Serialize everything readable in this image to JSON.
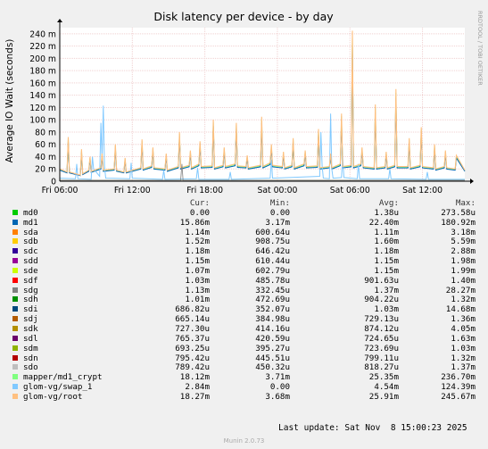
{
  "chart_data": {
    "type": "line",
    "title": "Disk latency per device - by day",
    "ylabel": "Average IO Wait (seconds)",
    "ylim": [
      0,
      250
    ],
    "yticks": [
      0,
      20,
      40,
      60,
      80,
      100,
      120,
      140,
      160,
      180,
      200,
      220,
      240
    ],
    "ytick_labels": [
      "0",
      "20 m",
      "40 m",
      "60 m",
      "80 m",
      "100 m",
      "120 m",
      "140 m",
      "160 m",
      "180 m",
      "200 m",
      "220 m",
      "240 m"
    ],
    "x_hours": [
      0,
      33.5
    ],
    "xticks": [
      {
        "label": "Fri 06:00",
        "h": 0
      },
      {
        "label": "Fri 12:00",
        "h": 6
      },
      {
        "label": "Fri 18:00",
        "h": 12
      },
      {
        "label": "Sat 00:00",
        "h": 18
      },
      {
        "label": "Sat 06:00",
        "h": 24
      },
      {
        "label": "Sat 12:00",
        "h": 30
      }
    ],
    "side_label": "RRDTOOL / TOBI OETIKER",
    "grid": true,
    "legend_headers": {
      "cur": "Cur:",
      "min": "Min:",
      "avg": "Avg:",
      "max": "Max:"
    },
    "series": [
      {
        "name": "md0",
        "color": "#00cc00",
        "cur": "0.00",
        "min": "0.00",
        "avg": "1.38u",
        "max": "273.58u"
      },
      {
        "name": "md1",
        "color": "#0066b3",
        "cur": "15.86m",
        "min": "3.17m",
        "avg": "22.40m",
        "max": "180.92m"
      },
      {
        "name": "sda",
        "color": "#ff8000",
        "cur": "1.14m",
        "min": "600.64u",
        "avg": "1.11m",
        "max": "3.18m"
      },
      {
        "name": "sdb",
        "color": "#ffcc00",
        "cur": "1.52m",
        "min": "908.75u",
        "avg": "1.60m",
        "max": "5.59m"
      },
      {
        "name": "sdc",
        "color": "#330099",
        "cur": "1.18m",
        "min": "646.42u",
        "avg": "1.18m",
        "max": "2.88m"
      },
      {
        "name": "sdd",
        "color": "#990099",
        "cur": "1.15m",
        "min": "610.44u",
        "avg": "1.15m",
        "max": "1.98m"
      },
      {
        "name": "sde",
        "color": "#ccff00",
        "cur": "1.07m",
        "min": "602.79u",
        "avg": "1.15m",
        "max": "1.99m"
      },
      {
        "name": "sdf",
        "color": "#ff0000",
        "cur": "1.03m",
        "min": "485.78u",
        "avg": "901.63u",
        "max": "1.40m"
      },
      {
        "name": "sdg",
        "color": "#808080",
        "cur": "1.13m",
        "min": "332.45u",
        "avg": "1.37m",
        "max": "28.27m"
      },
      {
        "name": "sdh",
        "color": "#008f00",
        "cur": "1.01m",
        "min": "472.69u",
        "avg": "904.22u",
        "max": "1.32m"
      },
      {
        "name": "sdi",
        "color": "#00487d",
        "cur": "686.82u",
        "min": "352.07u",
        "avg": "1.03m",
        "max": "14.68m"
      },
      {
        "name": "sdj",
        "color": "#b35a00",
        "cur": "665.14u",
        "min": "384.98u",
        "avg": "729.13u",
        "max": "1.36m"
      },
      {
        "name": "sdk",
        "color": "#b38f00",
        "cur": "727.30u",
        "min": "414.16u",
        "avg": "874.12u",
        "max": "4.05m"
      },
      {
        "name": "sdl",
        "color": "#6b006b",
        "cur": "765.37u",
        "min": "420.59u",
        "avg": "724.65u",
        "max": "1.63m"
      },
      {
        "name": "sdm",
        "color": "#8fb300",
        "cur": "693.25u",
        "min": "395.27u",
        "avg": "723.69u",
        "max": "1.03m"
      },
      {
        "name": "sdn",
        "color": "#b30000",
        "cur": "795.42u",
        "min": "445.51u",
        "avg": "799.11u",
        "max": "1.32m"
      },
      {
        "name": "sdo",
        "color": "#bebebe",
        "cur": "789.42u",
        "min": "450.32u",
        "avg": "818.27u",
        "max": "1.37m"
      },
      {
        "name": "mapper/md1_crypt",
        "color": "#80ff80",
        "cur": "18.12m",
        "min": "3.71m",
        "avg": "25.35m",
        "max": "236.70m"
      },
      {
        "name": "glom-vg/swap_1",
        "color": "#80c9ff",
        "cur": "2.84m",
        "min": "0.00",
        "avg": "4.54m",
        "max": "124.39m"
      },
      {
        "name": "glom-vg/root",
        "color": "#ffc080",
        "cur": "18.27m",
        "min": "3.68m",
        "avg": "25.91m",
        "max": "245.67m"
      }
    ],
    "trace_points": {
      "root": [
        [
          0,
          20
        ],
        [
          0.6,
          15
        ],
        [
          0.7,
          72
        ],
        [
          0.8,
          15
        ],
        [
          1.7,
          10
        ],
        [
          1.8,
          52
        ],
        [
          1.9,
          12
        ],
        [
          2.4,
          18
        ],
        [
          2.5,
          40
        ],
        [
          2.6,
          16
        ],
        [
          3.4,
          22
        ],
        [
          3.5,
          45
        ],
        [
          3.6,
          18
        ],
        [
          4.5,
          20
        ],
        [
          4.6,
          60
        ],
        [
          4.7,
          18
        ],
        [
          5.3,
          15
        ],
        [
          5.4,
          38
        ],
        [
          5.5,
          15
        ],
        [
          6.7,
          22
        ],
        [
          6.8,
          68
        ],
        [
          6.9,
          20
        ],
        [
          7.6,
          25
        ],
        [
          7.7,
          55
        ],
        [
          7.8,
          22
        ],
        [
          8.7,
          20
        ],
        [
          8.8,
          45
        ],
        [
          8.9,
          18
        ],
        [
          9.8,
          24
        ],
        [
          9.9,
          80
        ],
        [
          10,
          22
        ],
        [
          10.7,
          26
        ],
        [
          10.8,
          50
        ],
        [
          10.9,
          22
        ],
        [
          11.5,
          28
        ],
        [
          11.6,
          65
        ],
        [
          11.7,
          24
        ],
        [
          12.6,
          25
        ],
        [
          12.7,
          100
        ],
        [
          12.8,
          22
        ],
        [
          13.5,
          26
        ],
        [
          13.6,
          55
        ],
        [
          13.7,
          24
        ],
        [
          14.5,
          28
        ],
        [
          14.6,
          95
        ],
        [
          14.7,
          25
        ],
        [
          15.4,
          24
        ],
        [
          15.5,
          42
        ],
        [
          15.6,
          22
        ],
        [
          16.6,
          26
        ],
        [
          16.7,
          105
        ],
        [
          16.8,
          24
        ],
        [
          17.4,
          30
        ],
        [
          17.5,
          60
        ],
        [
          17.6,
          26
        ],
        [
          18.4,
          24
        ],
        [
          18.5,
          48
        ],
        [
          18.6,
          22
        ],
        [
          19.2,
          26
        ],
        [
          19.3,
          70
        ],
        [
          19.4,
          22
        ],
        [
          20.2,
          28
        ],
        [
          20.3,
          50
        ],
        [
          20.4,
          24
        ],
        [
          21.3,
          25
        ],
        [
          21.4,
          85
        ],
        [
          21.5,
          22
        ],
        [
          22.3,
          24
        ],
        [
          22.4,
          45
        ],
        [
          22.5,
          22
        ],
        [
          23.2,
          28
        ],
        [
          23.3,
          110
        ],
        [
          23.4,
          24
        ],
        [
          24.1,
          26
        ],
        [
          24.2,
          245
        ],
        [
          24.3,
          24
        ],
        [
          24.9,
          28
        ],
        [
          25,
          55
        ],
        [
          25.1,
          24
        ],
        [
          26,
          22
        ],
        [
          26.1,
          125
        ],
        [
          26.2,
          22
        ],
        [
          26.9,
          24
        ],
        [
          27,
          48
        ],
        [
          27.1,
          22
        ],
        [
          27.7,
          26
        ],
        [
          27.8,
          150
        ],
        [
          27.9,
          24
        ],
        [
          28.8,
          24
        ],
        [
          28.9,
          70
        ],
        [
          29,
          22
        ],
        [
          29.8,
          26
        ],
        [
          29.9,
          88
        ],
        [
          30,
          24
        ],
        [
          30.9,
          22
        ],
        [
          31,
          60
        ],
        [
          31.1,
          20
        ],
        [
          31.8,
          24
        ],
        [
          31.9,
          50
        ],
        [
          32,
          22
        ],
        [
          32.7,
          20
        ],
        [
          32.8,
          42
        ],
        [
          33.5,
          18
        ]
      ],
      "swap": [
        [
          0,
          5
        ],
        [
          1.3,
          4
        ],
        [
          1.4,
          28
        ],
        [
          1.5,
          4
        ],
        [
          2.6,
          3
        ],
        [
          2.7,
          40
        ],
        [
          2.8,
          20
        ],
        [
          3.3,
          8
        ],
        [
          3.4,
          95
        ],
        [
          3.5,
          35
        ],
        [
          3.6,
          123
        ],
        [
          3.7,
          25
        ],
        [
          3.8,
          5
        ],
        [
          5.8,
          4
        ],
        [
          5.9,
          30
        ],
        [
          6,
          5
        ],
        [
          8.5,
          3
        ],
        [
          8.6,
          18
        ],
        [
          8.7,
          3
        ],
        [
          11.3,
          4
        ],
        [
          11.4,
          22
        ],
        [
          11.5,
          3
        ],
        [
          14,
          3
        ],
        [
          14.1,
          15
        ],
        [
          14.2,
          3
        ],
        [
          17.4,
          5
        ],
        [
          17.5,
          35
        ],
        [
          17.6,
          5
        ],
        [
          21.5,
          8
        ],
        [
          21.6,
          80
        ],
        [
          21.7,
          25
        ],
        [
          21.8,
          5
        ],
        [
          22.3,
          4
        ],
        [
          22.4,
          110
        ],
        [
          22.5,
          20
        ],
        [
          22.6,
          5
        ],
        [
          23.3,
          6
        ],
        [
          23.4,
          40
        ],
        [
          23.5,
          6
        ],
        [
          24.6,
          4
        ],
        [
          24.7,
          28
        ],
        [
          24.8,
          4
        ],
        [
          27.2,
          4
        ],
        [
          27.3,
          20
        ],
        [
          27.4,
          4
        ],
        [
          30.3,
          3
        ],
        [
          30.4,
          15
        ],
        [
          30.5,
          3
        ],
        [
          33.5,
          3
        ]
      ]
    },
    "last_update": "Last update: Sat Nov  8 15:00:23 2025",
    "footer": "Munin 2.0.73"
  }
}
